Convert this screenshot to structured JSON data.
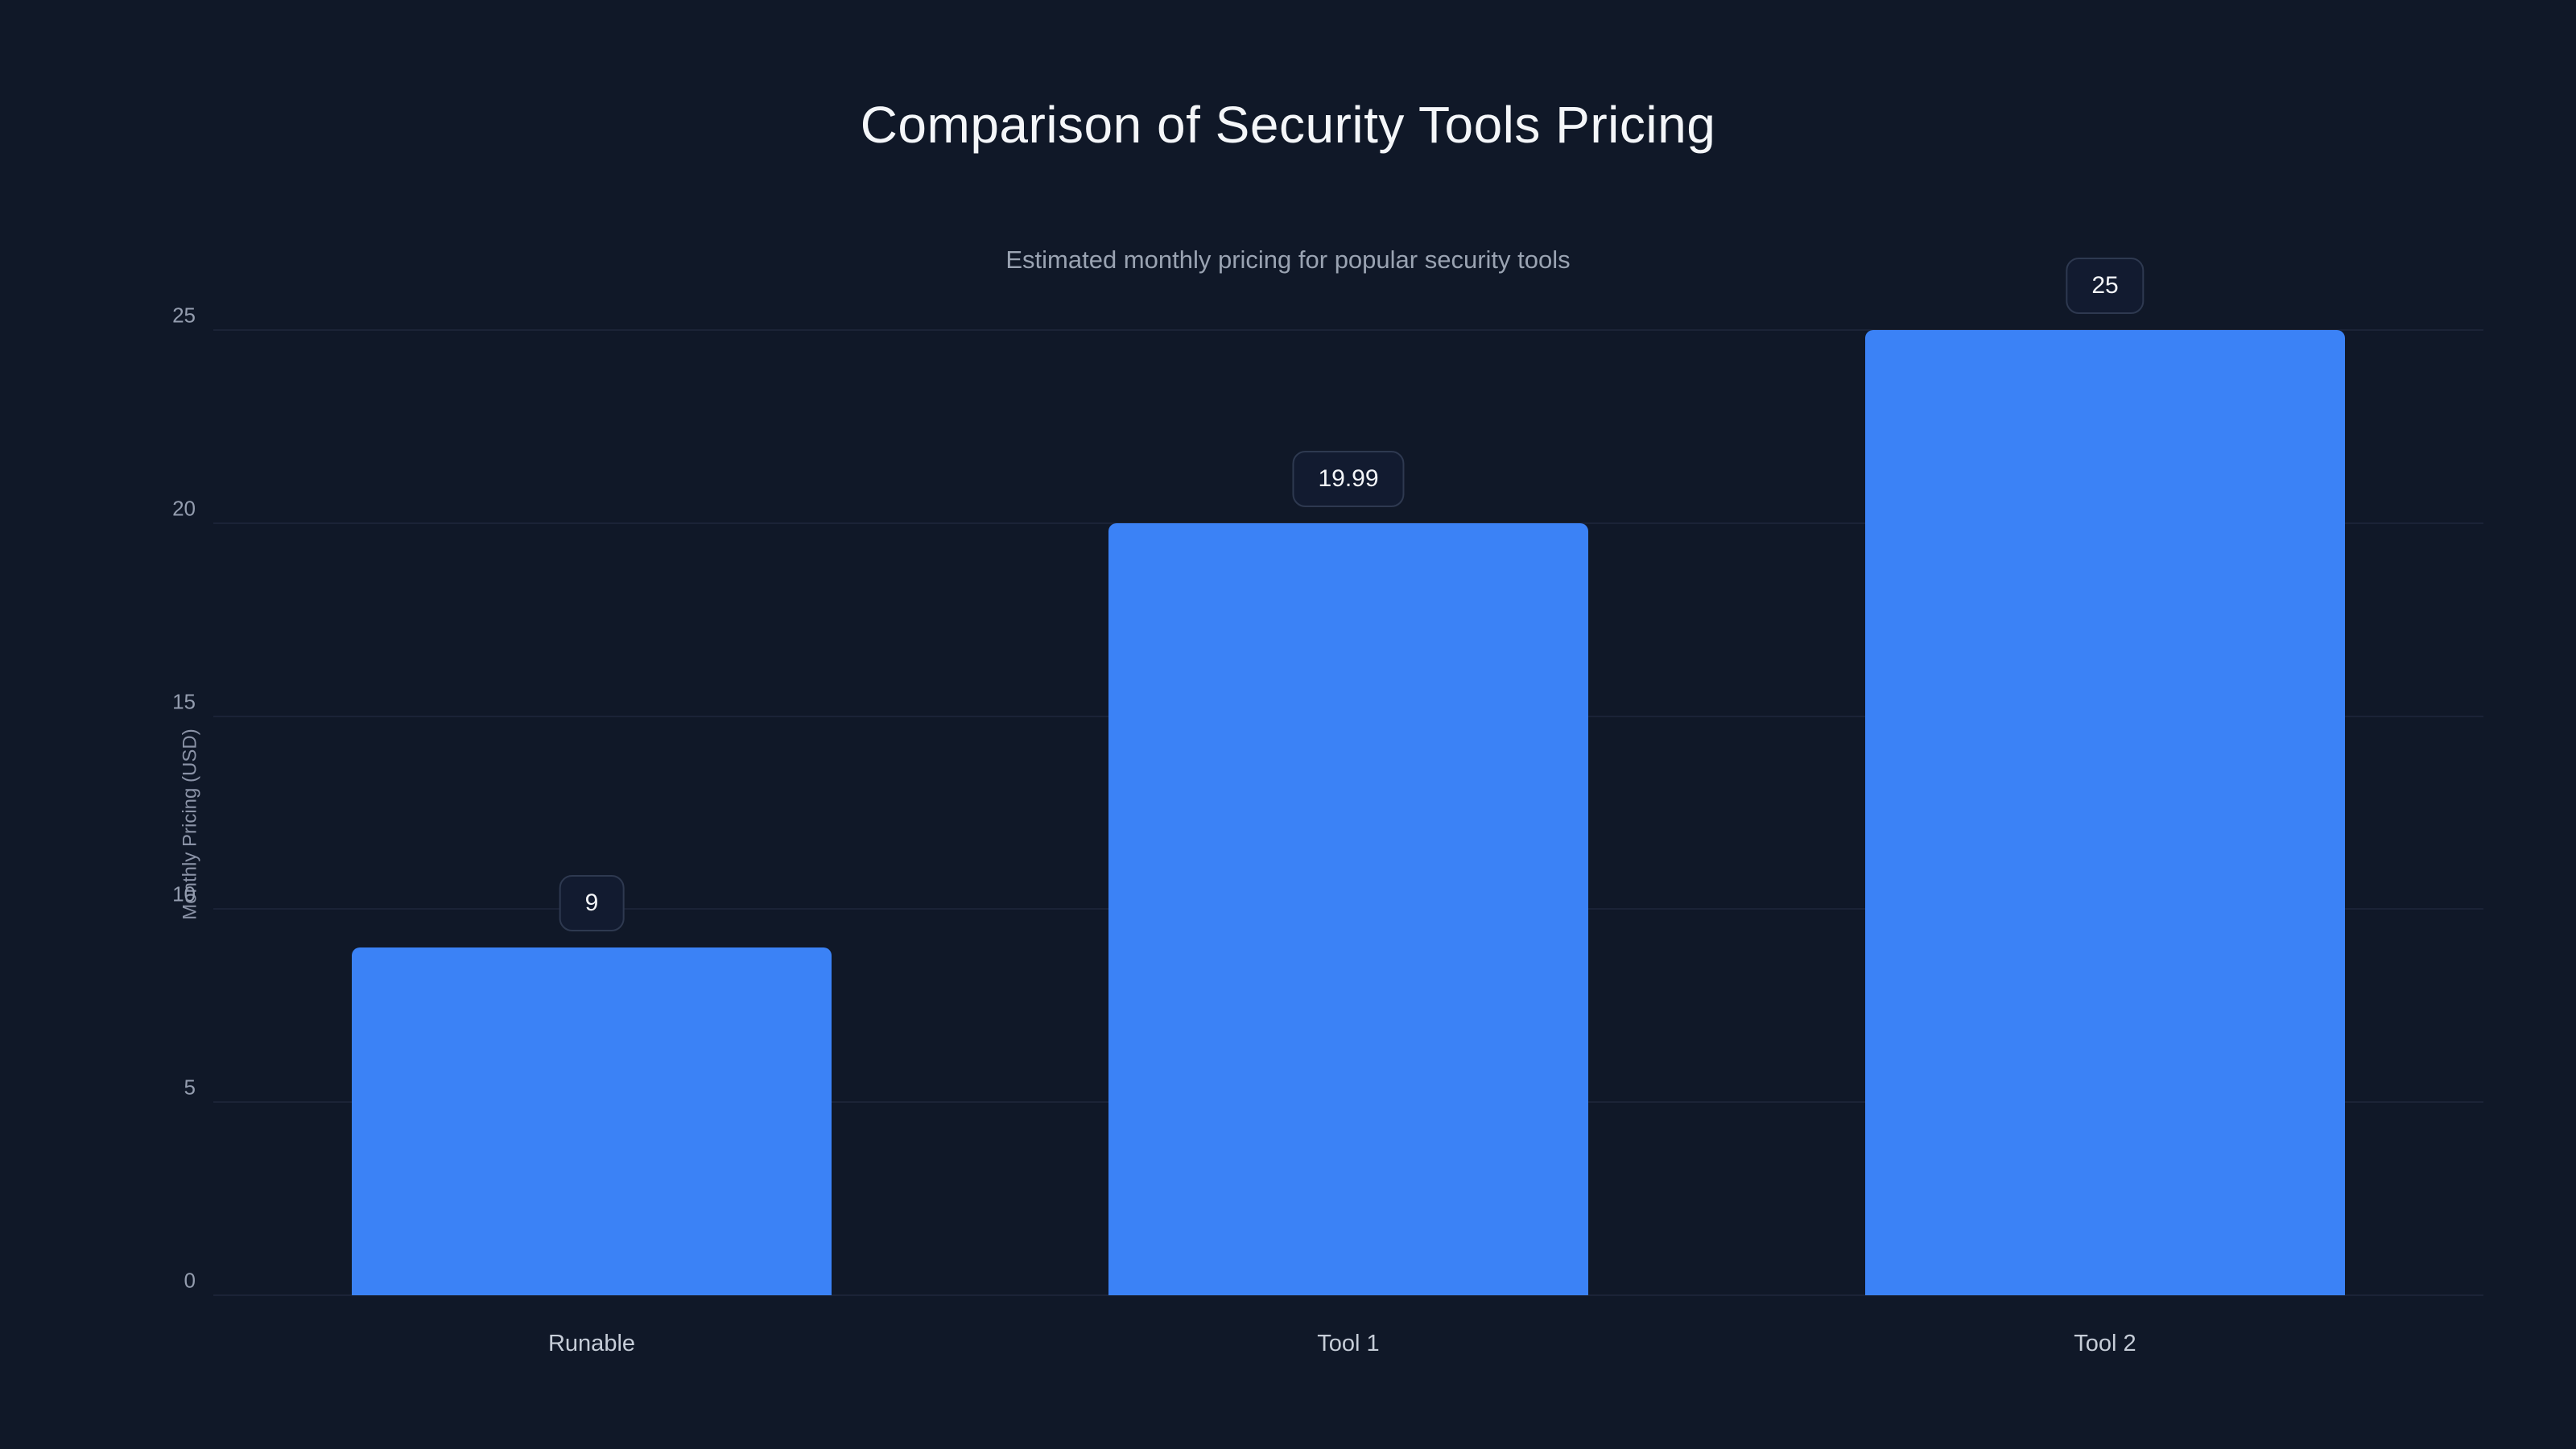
{
  "header": {
    "title": "Comparison of Security Tools Pricing",
    "subtitle": "Estimated monthly pricing for popular security tools"
  },
  "chart_data": {
    "type": "bar",
    "title": "Comparison of Security Tools Pricing",
    "subtitle": "Estimated monthly pricing for popular security tools",
    "categories": [
      "Runable",
      "Tool 1",
      "Tool 2"
    ],
    "values": [
      9,
      19.99,
      25
    ],
    "value_labels": [
      "9",
      "19.99",
      "25"
    ],
    "xlabel": "",
    "ylabel": "Monthly Pricing (USD)",
    "ylim": [
      0,
      25
    ],
    "yticks": [
      0,
      5,
      10,
      15,
      20,
      25
    ],
    "grid": true,
    "legend": false,
    "bar_color": "#3b82f6",
    "background_color": "#101828",
    "gridline_color": "#1b2337"
  }
}
